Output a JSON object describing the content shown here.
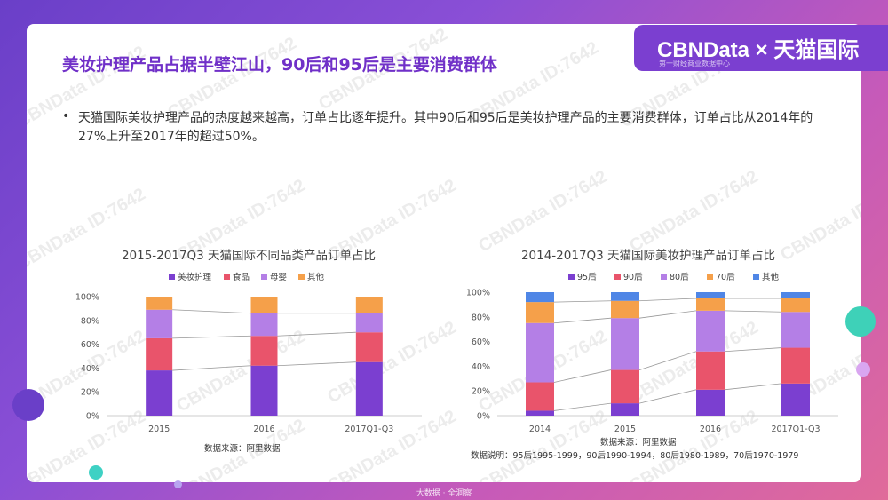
{
  "title": "美妆护理产品占据半壁江山，90后和95后是主要消费群体",
  "bullet": "天猫国际美妆护理产品的热度越来越高，订单占比逐年提升。其中90后和95后是美妆护理产品的主要消费群体，订单占比从2014年的27%上升至2017年的超过50%。",
  "brand": {
    "name": "CBNData × 天猫国际",
    "subtitle": "第一财经商业数据中心"
  },
  "footer": "大数据 · 全洞察",
  "watermark": "CBNData ID:7642",
  "colors": {
    "purple": "#7b3fd0",
    "red": "#e9546b",
    "lilac": "#b47fe6",
    "orange": "#f5a04a",
    "blue": "#4f86e6"
  },
  "chart_data": [
    {
      "type": "bar",
      "title": "2015-2017Q3 天猫国际不同品类产品订单占比",
      "categories": [
        "2015",
        "2016",
        "2017Q1-Q3"
      ],
      "ylim": [
        0,
        100
      ],
      "yticks": [
        "0%",
        "20%",
        "40%",
        "60%",
        "80%",
        "100%"
      ],
      "series": [
        {
          "name": "美妆护理",
          "values": [
            38,
            42,
            45
          ],
          "color": "#7b3fd0"
        },
        {
          "name": "食品",
          "values": [
            27,
            25,
            25
          ],
          "color": "#e9546b"
        },
        {
          "name": "母婴",
          "values": [
            24,
            19,
            16
          ],
          "color": "#b47fe6"
        },
        {
          "name": "其他",
          "values": [
            11,
            14,
            14
          ],
          "color": "#f5a04a"
        }
      ],
      "source": "数据来源：阿里数据"
    },
    {
      "type": "bar",
      "title": "2014-2017Q3 天猫国际美妆护理产品订单占比",
      "categories": [
        "2014",
        "2015",
        "2016",
        "2017Q1-Q3"
      ],
      "ylim": [
        0,
        100
      ],
      "yticks": [
        "0%",
        "20%",
        "40%",
        "60%",
        "80%",
        "100%"
      ],
      "series": [
        {
          "name": "95后",
          "values": [
            4,
            10,
            21,
            26
          ],
          "color": "#7b3fd0"
        },
        {
          "name": "90后",
          "values": [
            23,
            27,
            31,
            29
          ],
          "color": "#e9546b"
        },
        {
          "name": "80后",
          "values": [
            48,
            42,
            33,
            29
          ],
          "color": "#b47fe6"
        },
        {
          "name": "70后",
          "values": [
            17,
            14,
            10,
            11
          ],
          "color": "#f5a04a"
        },
        {
          "name": "其他",
          "values": [
            8,
            7,
            5,
            5
          ],
          "color": "#4f86e6"
        }
      ],
      "source": "数据来源：阿里数据",
      "note": "数据说明：95后1995-1999，90后1990-1994，80后1980-1989，70后1970-1979"
    }
  ]
}
